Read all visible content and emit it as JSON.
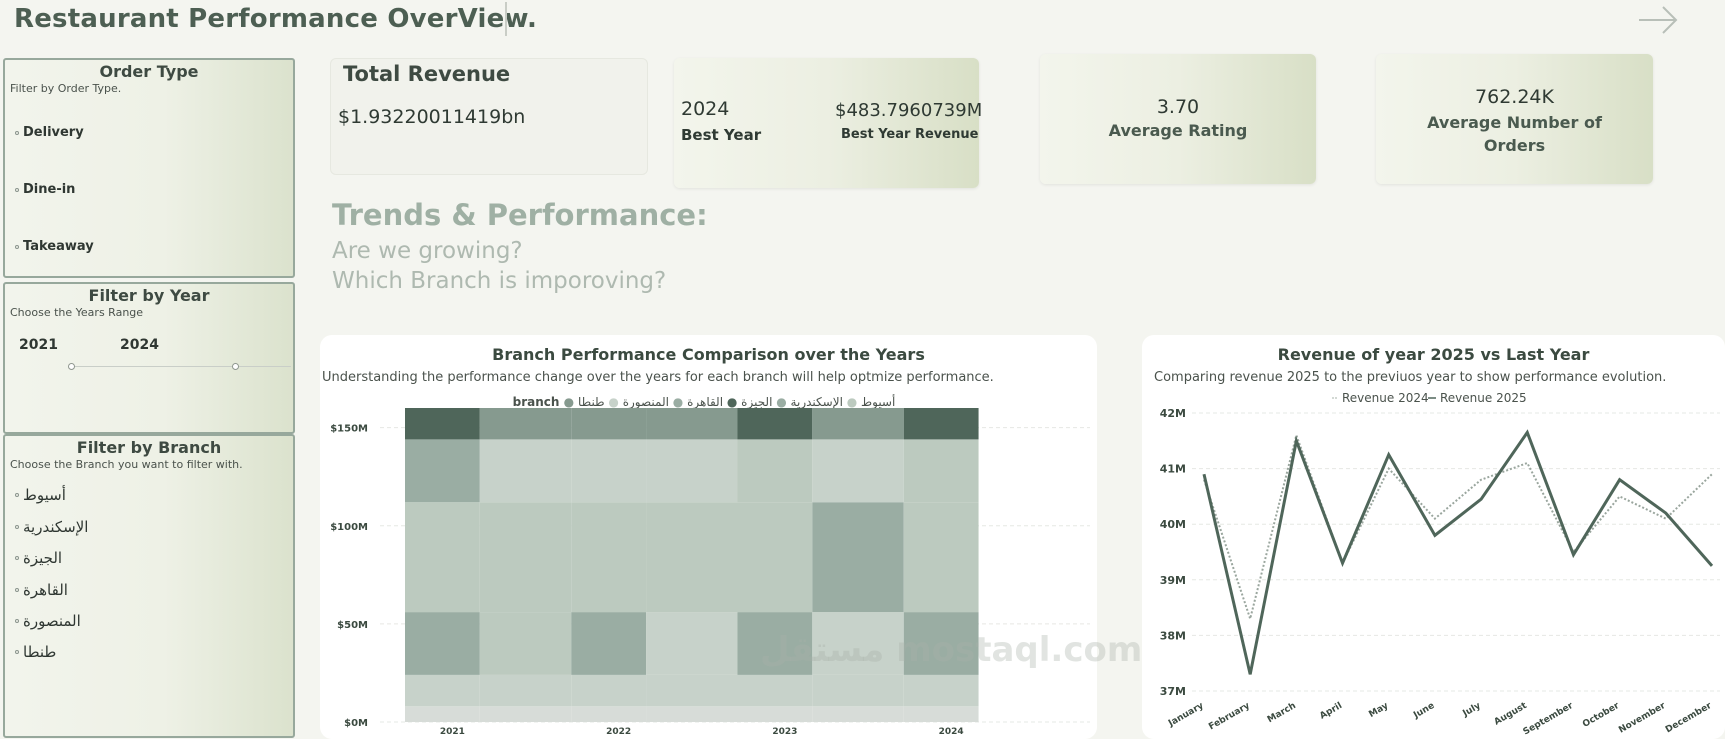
{
  "header": {
    "title": "Restaurant Performance OverView."
  },
  "filters": {
    "order_type": {
      "title": "Order Type",
      "subtitle": "Filter by Order Type.",
      "items": [
        "Delivery",
        "Dine-in",
        "Takeaway"
      ]
    },
    "year": {
      "title": "Filter by Year",
      "subtitle": "Choose the Years Range",
      "from": "2021",
      "to": "2024"
    },
    "branch": {
      "title": "Filter by Branch",
      "subtitle": "Choose the Branch you want to filter with.",
      "items": [
        "أسيوط",
        "الإسكندرية",
        "الجيزة",
        "القاهرة",
        "المنصورة",
        "طنطا"
      ]
    }
  },
  "kpis": {
    "total_revenue": {
      "label": "Total Revenue",
      "value": "$1.93220011419bn"
    },
    "best_year": {
      "year": "2024",
      "year_label": "Best Year",
      "revenue": "$483.7960739M",
      "revenue_label": "Best Year Revenue"
    },
    "avg_rating": {
      "value": "3.70",
      "label": "Average Rating"
    },
    "avg_orders": {
      "value": "762.24K",
      "label": "Average Number of Orders"
    }
  },
  "section": {
    "title": "Trends & Performance:",
    "q1": "Are we growing?",
    "q2": "Which Branch is imporoving?"
  },
  "branch_chart": {
    "title": "Branch Performance Comparison over the Years",
    "subtitle": "Understanding the performance change over the years for each branch will help optmize performance.",
    "legend_title": "branch",
    "watermark": "مستقل mostaql.com"
  },
  "revenue_chart": {
    "title": "Revenue of year 2025 vs Last Year",
    "subtitle": "Comparing revenue 2025 to the previuos year to show performance evolution.",
    "legend": [
      "Revenue 2024",
      "Revenue 2025"
    ]
  },
  "colors": {
    "dark": "#4f665a",
    "mid": "#869a8f",
    "light1": "#9aada3",
    "light2": "#bccabf",
    "light3": "#c7d2ca",
    "light4": "#d7dcd8"
  },
  "chart_data": [
    {
      "type": "bar",
      "title": "Branch Performance Comparison over the Years",
      "categories": [
        "2021",
        "2022",
        "2023",
        "2024"
      ],
      "yticks": [
        "$0M",
        "$50M",
        "$100M",
        "$150M"
      ],
      "ylim": [
        0,
        160
      ],
      "stacking": "ribbon",
      "series": [
        {
          "name": "أسيوط",
          "values": [
            8,
            8,
            8,
            8
          ]
        },
        {
          "name": "الإسكندرية",
          "values": [
            16,
            16,
            16,
            16
          ]
        },
        {
          "name": "الجيزة",
          "values": [
            32,
            32,
            32,
            32
          ]
        },
        {
          "name": "القاهرة",
          "values": [
            56,
            56,
            56,
            56
          ]
        },
        {
          "name": "المنصورة",
          "values": [
            32,
            32,
            32,
            32
          ]
        },
        {
          "name": "طنطا",
          "values": [
            16,
            16,
            16,
            16
          ]
        }
      ],
      "legend": "top"
    },
    {
      "type": "line",
      "title": "Revenue of year 2025 vs Last Year",
      "categories": [
        "January",
        "February",
        "March",
        "April",
        "May",
        "June",
        "July",
        "August",
        "September",
        "October",
        "November",
        "December"
      ],
      "yticks": [
        "37M",
        "38M",
        "39M",
        "40M",
        "41M",
        "42M"
      ],
      "ylim": [
        37,
        42
      ],
      "series": [
        {
          "name": "Revenue 2024",
          "values": [
            40.8,
            38.3,
            41.6,
            39.3,
            41.0,
            40.1,
            40.8,
            41.1,
            39.5,
            40.5,
            40.1,
            40.9
          ]
        },
        {
          "name": "Revenue 2025",
          "values": [
            40.9,
            37.3,
            41.5,
            39.3,
            41.25,
            39.8,
            40.45,
            41.65,
            39.45,
            40.8,
            40.2,
            39.25
          ]
        }
      ],
      "legend": "top"
    }
  ]
}
